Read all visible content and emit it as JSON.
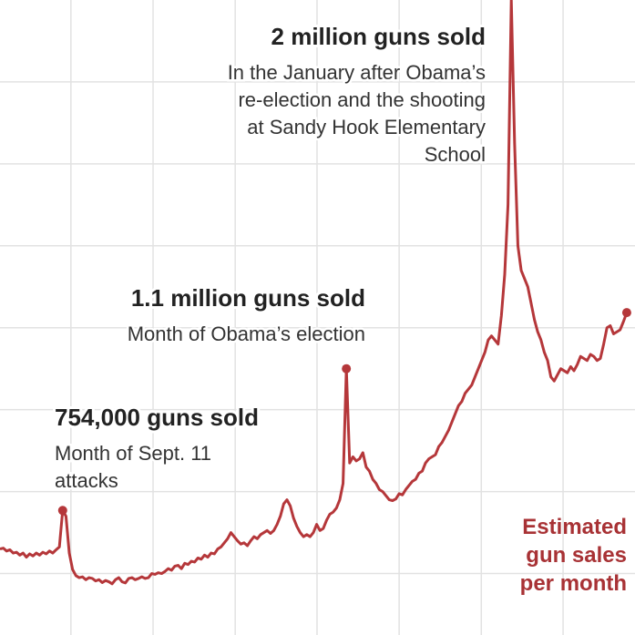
{
  "chart_data": {
    "type": "line",
    "annotations": [
      {
        "title": "2 million guns sold",
        "text": [
          "In the January after Obama’s",
          "re-election and the shooting",
          "at Sandy Hook Elementary",
          "School"
        ]
      },
      {
        "title": "1.1 million guns sold",
        "text": [
          "Month of Obama’s election"
        ]
      },
      {
        "title": "754,000 guns sold",
        "text": [
          "Month of Sept. 11",
          "attacks"
        ]
      }
    ],
    "series": [
      {
        "name": [
          "Estimated",
          "gun sales",
          "per month"
        ],
        "color": "#b5373a",
        "values": [
          660000,
          662000,
          655000,
          658000,
          650000,
          652000,
          645000,
          650000,
          640000,
          648000,
          643000,
          650000,
          645000,
          652000,
          648000,
          655000,
          650000,
          658000,
          665000,
          754000,
          740000,
          650000,
          610000,
          595000,
          590000,
          592000,
          585000,
          590000,
          588000,
          582000,
          585000,
          578000,
          583000,
          580000,
          575000,
          585000,
          590000,
          580000,
          577000,
          588000,
          590000,
          585000,
          588000,
          592000,
          588000,
          590000,
          600000,
          598000,
          602000,
          600000,
          605000,
          612000,
          608000,
          618000,
          620000,
          612000,
          625000,
          622000,
          630000,
          628000,
          638000,
          635000,
          645000,
          640000,
          650000,
          648000,
          660000,
          665000,
          675000,
          685000,
          700000,
          690000,
          680000,
          672000,
          675000,
          668000,
          680000,
          690000,
          685000,
          695000,
          700000,
          705000,
          698000,
          705000,
          720000,
          740000,
          770000,
          780000,
          765000,
          735000,
          715000,
          700000,
          690000,
          695000,
          690000,
          700000,
          720000,
          705000,
          710000,
          730000,
          745000,
          750000,
          760000,
          780000,
          820000,
          1100000,
          870000,
          885000,
          875000,
          880000,
          895000,
          860000,
          850000,
          830000,
          820000,
          805000,
          800000,
          790000,
          780000,
          778000,
          782000,
          795000,
          792000,
          805000,
          815000,
          825000,
          830000,
          845000,
          850000,
          870000,
          880000,
          885000,
          890000,
          910000,
          920000,
          935000,
          950000,
          970000,
          990000,
          1010000,
          1020000,
          1040000,
          1050000,
          1060000,
          1080000,
          1100000,
          1120000,
          1140000,
          1170000,
          1180000,
          1170000,
          1160000,
          1230000,
          1330000,
          1500000,
          2000000,
          1650000,
          1400000,
          1340000,
          1320000,
          1300000,
          1260000,
          1220000,
          1190000,
          1170000,
          1140000,
          1120000,
          1080000,
          1070000,
          1085000,
          1100000,
          1095000,
          1090000,
          1105000,
          1095000,
          1110000,
          1130000,
          1125000,
          1120000,
          1135000,
          1130000,
          1120000,
          1125000,
          1160000,
          1200000,
          1205000,
          1185000,
          1190000,
          1195000,
          1215000,
          1237000
        ]
      }
    ],
    "xlim": [
      0,
      192.5
    ],
    "xticks": [
      21.5,
      46.4,
      71.3,
      96.1,
      121,
      145.9,
      170.7
    ],
    "ylim": [
      450000,
      2000000
    ],
    "yticks": [
      600000,
      800000,
      1000000,
      1200000,
      1400000,
      1600000,
      1800000
    ],
    "grid": true
  }
}
